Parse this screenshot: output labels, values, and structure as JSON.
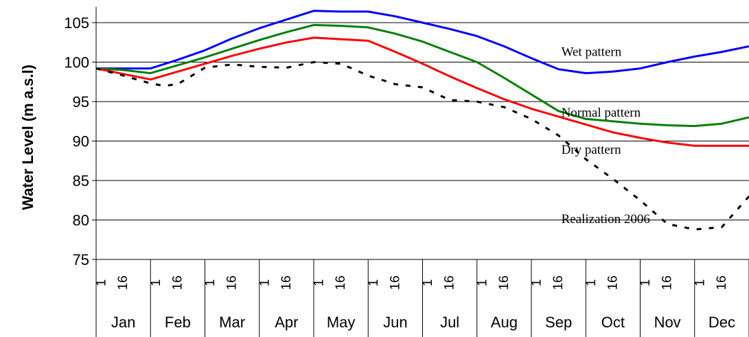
{
  "chart_data": {
    "type": "line",
    "title": "",
    "ylabel": "Water Level (m a.s.l)",
    "xlabel": "",
    "ylim": [
      75,
      107
    ],
    "y_ticks": [
      75,
      80,
      85,
      90,
      95,
      100,
      105
    ],
    "grid": "horizontal",
    "months": [
      "Jan",
      "Feb",
      "Mar",
      "Apr",
      "May",
      "Jun",
      "Jul",
      "Aug",
      "Sep",
      "Oct",
      "Nov",
      "Dec"
    ],
    "day_ticks": [
      "1",
      "16"
    ],
    "x_unit": "month",
    "series": [
      {
        "name": "Wet pattern",
        "label": "Wet pattern",
        "color": "#0000ff",
        "style": "solid",
        "x": [
          0,
          1,
          1.5,
          2,
          2.5,
          3,
          3.5,
          4,
          4.5,
          5,
          5.5,
          6,
          6.5,
          7,
          7.5,
          8,
          8.5,
          9,
          9.5,
          10,
          10.5,
          11,
          11.5,
          12
        ],
        "y": [
          99.2,
          99.2,
          100.3,
          101.5,
          103,
          104.3,
          105.4,
          106.5,
          106.4,
          106.4,
          105.8,
          105,
          104.2,
          103.3,
          102,
          100.5,
          99.1,
          98.6,
          98.8,
          99.2,
          100,
          100.7,
          101.3,
          102
        ]
      },
      {
        "name": "Normal pattern",
        "label": "Normal pattern",
        "color": "#008000",
        "style": "solid",
        "x": [
          0,
          0.5,
          1,
          1.5,
          2,
          2.5,
          3,
          3.5,
          4,
          4.5,
          5,
          5.5,
          6,
          6.5,
          7,
          7.5,
          8,
          8.5,
          9,
          9.5,
          10,
          10.5,
          11,
          11.5,
          12
        ],
        "y": [
          99.2,
          99.0,
          98.6,
          99.6,
          100.6,
          101.7,
          102.8,
          103.8,
          104.7,
          104.6,
          104.4,
          103.6,
          102.6,
          101.3,
          100.0,
          98.0,
          95.9,
          93.8,
          92.8,
          92.5,
          92.2,
          92.0,
          91.9,
          92.2,
          93.0
        ]
      },
      {
        "name": "Dry pattern",
        "label": "Dry pattern",
        "color": "#ff0000",
        "style": "solid",
        "x": [
          0,
          0.5,
          1,
          1.5,
          2,
          2.5,
          3,
          3.5,
          4,
          4.5,
          5,
          5.5,
          6,
          6.5,
          7,
          7.5,
          8,
          8.5,
          9,
          9.5,
          10,
          10.5,
          11,
          11.5,
          12
        ],
        "y": [
          99.2,
          98.5,
          97.8,
          98.8,
          99.8,
          100.8,
          101.7,
          102.5,
          103.1,
          102.9,
          102.7,
          101.3,
          99.8,
          98.2,
          96.7,
          95.3,
          94.1,
          93.1,
          92.1,
          91.1,
          90.4,
          89.8,
          89.4,
          89.4,
          89.4
        ]
      },
      {
        "name": "Realization 2006",
        "label": "Realization 2006",
        "color": "#000000",
        "style": "dashed",
        "x": [
          0,
          0.5,
          1,
          1.25,
          1.5,
          2,
          2.5,
          3,
          3.5,
          4,
          4.5,
          5,
          5.5,
          6,
          6.5,
          7,
          7.5,
          8,
          8.5,
          9,
          9.5,
          10,
          10.5,
          11,
          11.5,
          12
        ],
        "y": [
          99.2,
          98.3,
          97.3,
          97.0,
          97.2,
          99.3,
          99.7,
          99.4,
          99.3,
          100.0,
          99.8,
          98.3,
          97.2,
          96.8,
          95.2,
          95.0,
          94.3,
          92.8,
          90.7,
          87.7,
          85.2,
          82.5,
          79.5,
          78.8,
          79.1,
          83.0
        ]
      }
    ],
    "annotations": [
      {
        "text": "Wet pattern",
        "series": 0,
        "x": 8.55,
        "y": 100.8
      },
      {
        "text": "Normal pattern",
        "series": 1,
        "x": 8.55,
        "y": 93.1
      },
      {
        "text": "Dry pattern",
        "series": 2,
        "x": 8.55,
        "y": 88.4
      },
      {
        "text": "Realization 2006",
        "series": 3,
        "x": 8.55,
        "y": 79.6
      }
    ]
  }
}
